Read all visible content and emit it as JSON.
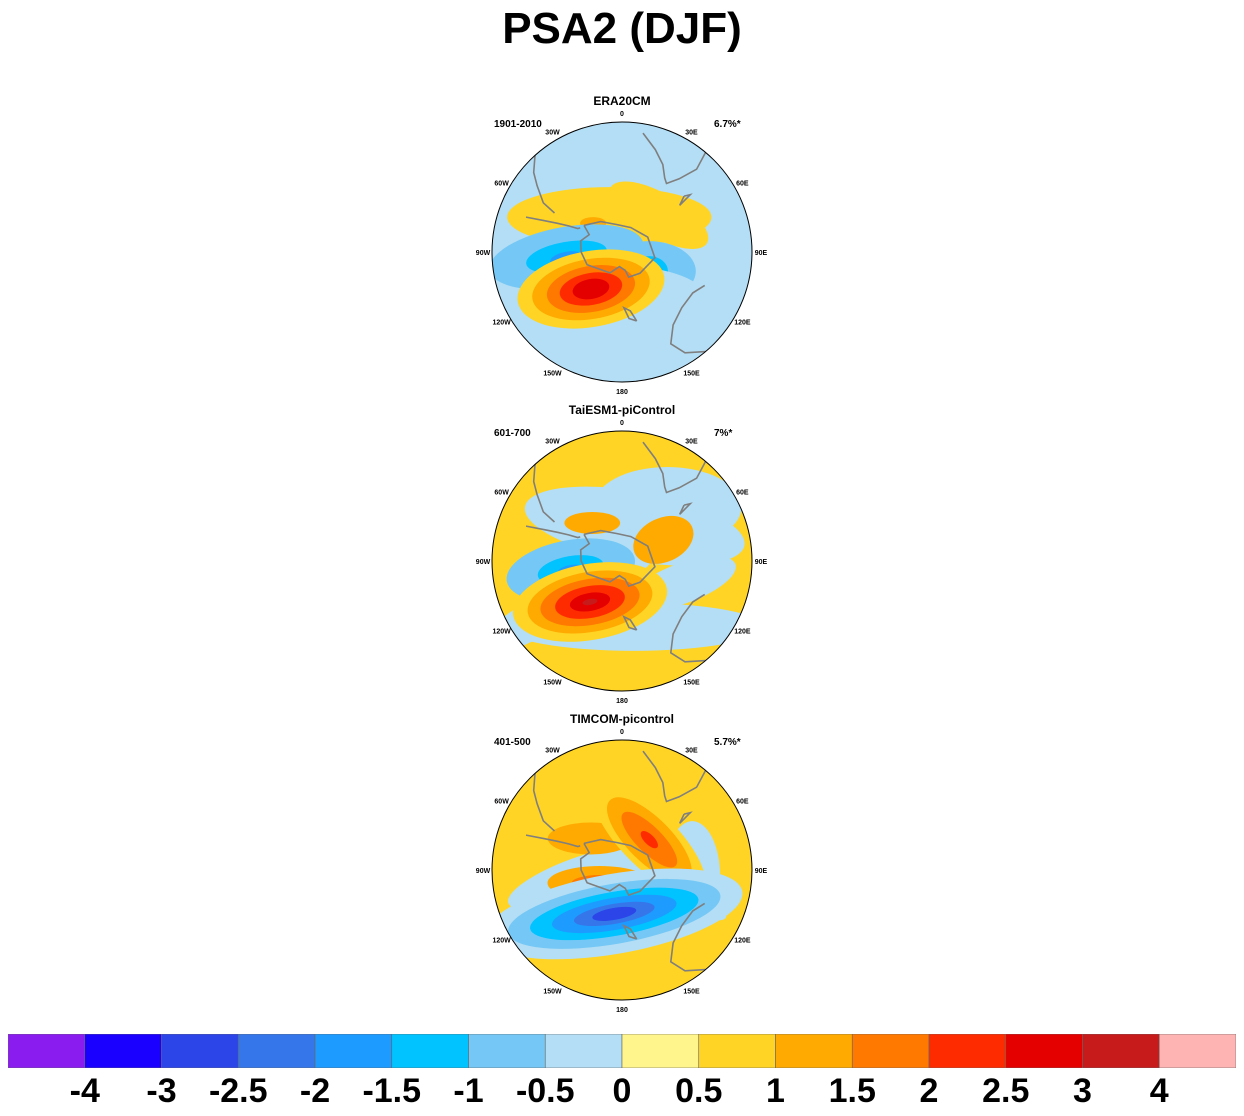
{
  "title": "PSA2 (DJF)",
  "panels": [
    {
      "name": "ERA20CM",
      "period": "1901-2010",
      "variance": "6.7%*",
      "blobs": [
        {
          "lon": -20,
          "colat": 20,
          "rx": 55,
          "ry": 30,
          "rot": 0,
          "value": 0.5
        },
        {
          "lon": 45,
          "colat": 28,
          "rx": 30,
          "ry": 22,
          "rot": 30,
          "value": 0.5
        },
        {
          "lon": -55,
          "colat": 30,
          "rx": 28,
          "ry": 18,
          "rot": 0,
          "value": 0.5
        },
        {
          "lon": -45,
          "colat": 22,
          "rx": 7,
          "ry": 6,
          "rot": 0,
          "value": 1
        },
        {
          "lon": 125,
          "colat": 32,
          "rx": 12,
          "ry": 20,
          "rot": 0,
          "value": 0.5
        },
        {
          "lon": -95,
          "colat": 30,
          "rx": 42,
          "ry": 30,
          "rot": -10,
          "value": -1
        },
        {
          "lon": -95,
          "colat": 30,
          "rx": 22,
          "ry": 15,
          "rot": -10,
          "value": -1.5
        },
        {
          "lon": -97,
          "colat": 30,
          "rx": 9,
          "ry": 7,
          "rot": -10,
          "value": -2
        },
        {
          "lon": 125,
          "colat": 18,
          "rx": 25,
          "ry": 30,
          "rot": 0,
          "value": -1
        },
        {
          "lon": 125,
          "colat": 18,
          "rx": 10,
          "ry": 15,
          "rot": 0,
          "value": -1.5
        },
        {
          "lon": -165,
          "colat": 24,
          "rx": 50,
          "ry": 30,
          "rot": 0,
          "value": -0.5
        },
        {
          "lon": -140,
          "colat": 26,
          "rx": 40,
          "ry": 38,
          "rot": -10,
          "value": 0.5
        },
        {
          "lon": -140,
          "colat": 26,
          "rx": 32,
          "ry": 30,
          "rot": -10,
          "value": 1
        },
        {
          "lon": -140,
          "colat": 26,
          "rx": 24,
          "ry": 23,
          "rot": -10,
          "value": 1.5
        },
        {
          "lon": -140,
          "colat": 26,
          "rx": 17,
          "ry": 16,
          "rot": -10,
          "value": 2
        },
        {
          "lon": -140,
          "colat": 26,
          "rx": 10,
          "ry": 10,
          "rot": -10,
          "value": 2.5
        }
      ]
    },
    {
      "name": "TaiESM1-piControl",
      "period": "601-700",
      "variance": "7%*",
      "blobs": [
        {
          "lon": 0,
          "colat": 0,
          "rx": 140,
          "ry": 140,
          "rot": 0,
          "value": 0.5
        },
        {
          "lon": 20,
          "colat": 20,
          "rx": 60,
          "ry": 35,
          "rot": 10,
          "value": -0.5
        },
        {
          "lon": 40,
          "colat": 38,
          "rx": 40,
          "ry": 40,
          "rot": 0,
          "value": -0.5
        },
        {
          "lon": 110,
          "colat": 35,
          "rx": 30,
          "ry": 20,
          "rot": -20,
          "value": -0.5
        },
        {
          "lon": 170,
          "colat": 36,
          "rx": 70,
          "ry": 24,
          "rot": 0,
          "value": -0.5
        },
        {
          "lon": -125,
          "colat": 40,
          "rx": 60,
          "ry": 20,
          "rot": -30,
          "value": -0.5
        },
        {
          "lon": 63,
          "colat": 25,
          "rx": 17,
          "ry": 22,
          "rot": -25,
          "value": 1
        },
        {
          "lon": -38,
          "colat": 26,
          "rx": 15,
          "ry": 11,
          "rot": 0,
          "value": 1
        },
        {
          "lon": -100,
          "colat": 28,
          "rx": 35,
          "ry": 30,
          "rot": -10,
          "value": -1
        },
        {
          "lon": -100,
          "colat": 28,
          "rx": 18,
          "ry": 14,
          "rot": -10,
          "value": -1.5
        },
        {
          "lon": -100,
          "colat": 28,
          "rx": 7,
          "ry": 5,
          "rot": -10,
          "value": -2
        },
        {
          "lon": -142,
          "colat": 28,
          "rx": 42,
          "ry": 38,
          "rot": -10,
          "value": 0.5
        },
        {
          "lon": -142,
          "colat": 28,
          "rx": 34,
          "ry": 30,
          "rot": -10,
          "value": 1
        },
        {
          "lon": -142,
          "colat": 28,
          "rx": 27,
          "ry": 23,
          "rot": -10,
          "value": 1.5
        },
        {
          "lon": -142,
          "colat": 28,
          "rx": 19,
          "ry": 16,
          "rot": -10,
          "value": 2
        },
        {
          "lon": -142,
          "colat": 28,
          "rx": 11,
          "ry": 9,
          "rot": -10,
          "value": 2.5
        },
        {
          "lon": -142,
          "colat": 28,
          "rx": 4,
          "ry": 3,
          "rot": -10,
          "value": 3
        }
      ]
    },
    {
      "name": "TIMCOM-picontrol",
      "period": "401-500",
      "variance": "5.7%*",
      "blobs": [
        {
          "lon": 0,
          "colat": 0,
          "rx": 140,
          "ry": 140,
          "rot": 0,
          "value": 0.5
        },
        {
          "lon": 95,
          "colat": 38,
          "rx": 15,
          "ry": 55,
          "rot": 0,
          "value": -0.5
        },
        {
          "lon": 105,
          "colat": 22,
          "rx": 40,
          "ry": 16,
          "rot": 30,
          "value": -0.5
        },
        {
          "lon": -100,
          "colat": 24,
          "rx": 40,
          "ry": 20,
          "rot": -20,
          "value": -0.5
        },
        {
          "lon": -45,
          "colat": 24,
          "rx": 23,
          "ry": 16,
          "rot": 0,
          "value": 1
        },
        {
          "lon": 42,
          "colat": 22,
          "rx": 40,
          "ry": 28,
          "rot": 45,
          "value": 0.5
        },
        {
          "lon": 42,
          "colat": 22,
          "rx": 30,
          "ry": 22,
          "rot": 45,
          "value": 1
        },
        {
          "lon": 42,
          "colat": 22,
          "rx": 20,
          "ry": 13,
          "rot": 45,
          "value": 1.5
        },
        {
          "lon": 42,
          "colat": 22,
          "rx": 6,
          "ry": 5,
          "rot": 45,
          "value": 2
        },
        {
          "lon": -120,
          "colat": 14,
          "rx": 28,
          "ry": 17,
          "rot": 0,
          "value": 1
        },
        {
          "lon": -120,
          "colat": 14,
          "rx": 15,
          "ry": 8,
          "rot": 0,
          "value": 1.5
        },
        {
          "lon": -170,
          "colat": 24,
          "rx": 70,
          "ry": 40,
          "rot": -10,
          "value": -0.5
        },
        {
          "lon": -170,
          "colat": 24,
          "rx": 58,
          "ry": 30,
          "rot": -10,
          "value": -1
        },
        {
          "lon": -170,
          "colat": 24,
          "rx": 46,
          "ry": 22,
          "rot": -10,
          "value": -1.5
        },
        {
          "lon": -170,
          "colat": 24,
          "rx": 34,
          "ry": 16,
          "rot": -10,
          "value": -2
        },
        {
          "lon": -170,
          "colat": 24,
          "rx": 22,
          "ry": 10,
          "rot": -10,
          "value": -2.5
        },
        {
          "lon": -170,
          "colat": 24,
          "rx": 12,
          "ry": 6,
          "rot": -10,
          "value": -3
        }
      ]
    }
  ],
  "map_labels": {
    "lon_labels": [
      "0",
      "30E",
      "60E",
      "90E",
      "120E",
      "150E",
      "180",
      "150W",
      "120W",
      "90W",
      "60W",
      "30W"
    ],
    "background_value": -0.5,
    "land_color": "#7f7f7f"
  },
  "colorbar": {
    "colors": [
      "#8a1cf0",
      "#1a00ff",
      "#2b45e8",
      "#3577ea",
      "#1d9bff",
      "#00c3ff",
      "#75c8f5",
      "#b4def5",
      "#fff58c",
      "#ffd424",
      "#ffaa00",
      "#ff7800",
      "#ff2b00",
      "#e50000",
      "#c71b1b",
      "#ffb4b4"
    ],
    "boundaries": [
      "-4",
      "-3",
      "-2.5",
      "-2",
      "-1.5",
      "-1",
      "-0.5",
      "0",
      "0.5",
      "1",
      "1.5",
      "2",
      "2.5",
      "3",
      "4"
    ]
  }
}
